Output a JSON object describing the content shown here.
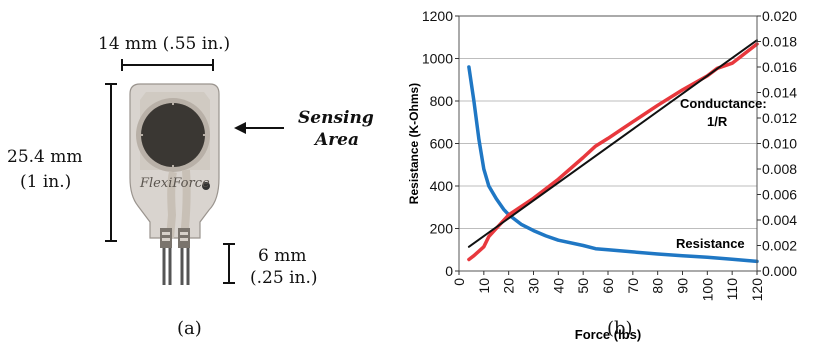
{
  "panel_a": {
    "width_label": "14 mm (.55 in.)",
    "height_label_line1": "25.4 mm",
    "height_label_line2": "(1 in.)",
    "tail_label_line1": "6 mm",
    "tail_label_line2": "(.25 in.)",
    "sensing_line1": "Sensing",
    "sensing_line2": "Area",
    "brand": "FlexiForce",
    "caption": "(a)"
  },
  "panel_b": {
    "caption": "(b)",
    "conductance_label_line1": "Conductance:",
    "conductance_label_line2": "1/R",
    "resistance_label": "Resistance"
  },
  "chart_data": {
    "type": "line",
    "xlabel": "Force (lbs)",
    "ylabel": "Resistance (K-Ohms)",
    "xlim": [
      0,
      120
    ],
    "ylim": [
      0,
      1200
    ],
    "y2lim": [
      0,
      0.02
    ],
    "x_ticks": [
      "0",
      "10",
      "20",
      "30",
      "40",
      "50",
      "60",
      "70",
      "80",
      "90",
      "100",
      "110",
      "120"
    ],
    "y_ticks": [
      "0",
      "200",
      "400",
      "600",
      "800",
      "1000",
      "1200"
    ],
    "y2_ticks": [
      "0.000",
      "0.002",
      "0.004",
      "0.006",
      "0.008",
      "0.010",
      "0.012",
      "0.014",
      "0.016",
      "0.018",
      "0.020"
    ],
    "grid": true,
    "colors": {
      "resistance": "#1f77c4",
      "conductance": "#e8383d",
      "fit": "#111111"
    },
    "series": [
      {
        "name": "Resistance",
        "axis": "left",
        "x": [
          4,
          6,
          8,
          10,
          12,
          15,
          18,
          20,
          25,
          30,
          35,
          40,
          50,
          55,
          60,
          70,
          80,
          90,
          100,
          110,
          120
        ],
        "y": [
          960,
          800,
          620,
          480,
          400,
          340,
          290,
          265,
          220,
          190,
          165,
          145,
          120,
          105,
          100,
          90,
          80,
          72,
          65,
          55,
          45
        ]
      },
      {
        "axis": "right",
        "x": [
          4,
          6,
          10,
          12,
          20,
          30,
          40,
          50,
          55,
          60,
          70,
          80,
          90,
          100,
          104,
          110,
          120
        ],
        "y": [
          0.0009,
          0.0012,
          0.0019,
          0.0027,
          0.0044,
          0.0057,
          0.0072,
          0.0089,
          0.0098,
          0.0104,
          0.0117,
          0.013,
          0.0142,
          0.0153,
          0.0159,
          0.0163,
          0.0178
        ]
      },
      {
        "axis": "right",
        "x": [
          4,
          120
        ],
        "y": [
          0.0019,
          0.0181
        ]
      }
    ]
  }
}
